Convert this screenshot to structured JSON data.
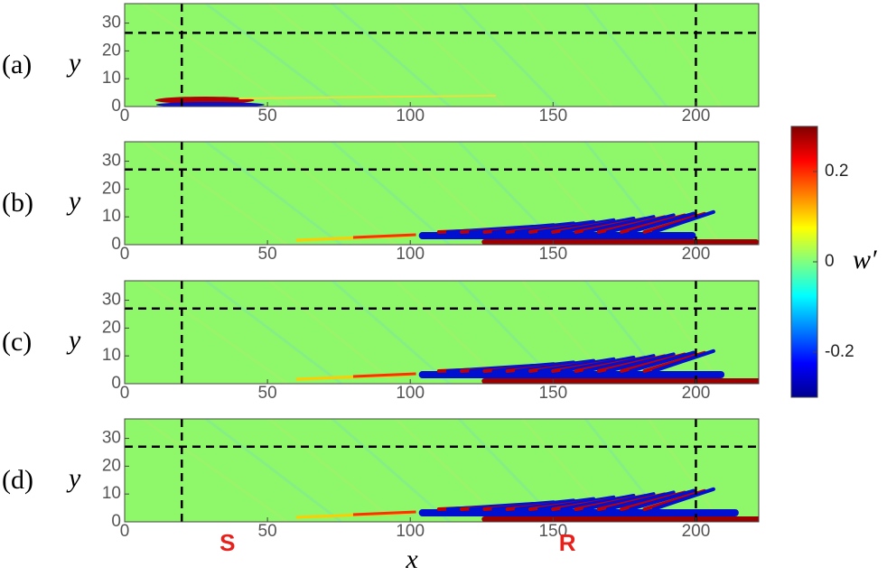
{
  "chart_data": [
    {
      "type": "heatmap",
      "panel_label": "(a)",
      "ylabel": "y",
      "xlim": [
        0,
        222
      ],
      "ylim": [
        0,
        37
      ],
      "xticks": [
        0,
        50,
        100,
        150,
        200
      ],
      "yticks": [
        0,
        10,
        20,
        30
      ],
      "vlines": [
        20,
        200
      ],
      "hlines": [
        26.5
      ],
      "stage": 0
    },
    {
      "type": "heatmap",
      "panel_label": "(b)",
      "ylabel": "y",
      "xlim": [
        0,
        222
      ],
      "ylim": [
        0,
        37
      ],
      "xticks": [
        0,
        50,
        100,
        150,
        200
      ],
      "yticks": [
        0,
        10,
        20,
        30
      ],
      "vlines": [
        20,
        200
      ],
      "hlines": [
        27
      ],
      "stage": 1
    },
    {
      "type": "heatmap",
      "panel_label": "(c)",
      "ylabel": "y",
      "xlim": [
        0,
        222
      ],
      "ylim": [
        0,
        37
      ],
      "xticks": [
        0,
        50,
        100,
        150,
        200
      ],
      "yticks": [
        0,
        10,
        20,
        30
      ],
      "vlines": [
        20,
        200
      ],
      "hlines": [
        27
      ],
      "stage": 2
    },
    {
      "type": "heatmap",
      "panel_label": "(d)",
      "ylabel": "y",
      "xlabel": "x",
      "xlim": [
        0,
        222
      ],
      "ylim": [
        0,
        37
      ],
      "xticks": [
        0,
        50,
        100,
        150,
        200
      ],
      "yticks": [
        0,
        10,
        20,
        30
      ],
      "vlines": [
        20,
        200
      ],
      "hlines": [
        27
      ],
      "stage": 3,
      "annotations": [
        {
          "text": "S",
          "x": 36
        },
        {
          "text": "R",
          "x": 155
        }
      ]
    }
  ],
  "colorbar": {
    "label": "w′",
    "clim": [
      -0.3,
      0.3
    ],
    "ticks": [
      -0.2,
      0,
      0.2
    ]
  }
}
